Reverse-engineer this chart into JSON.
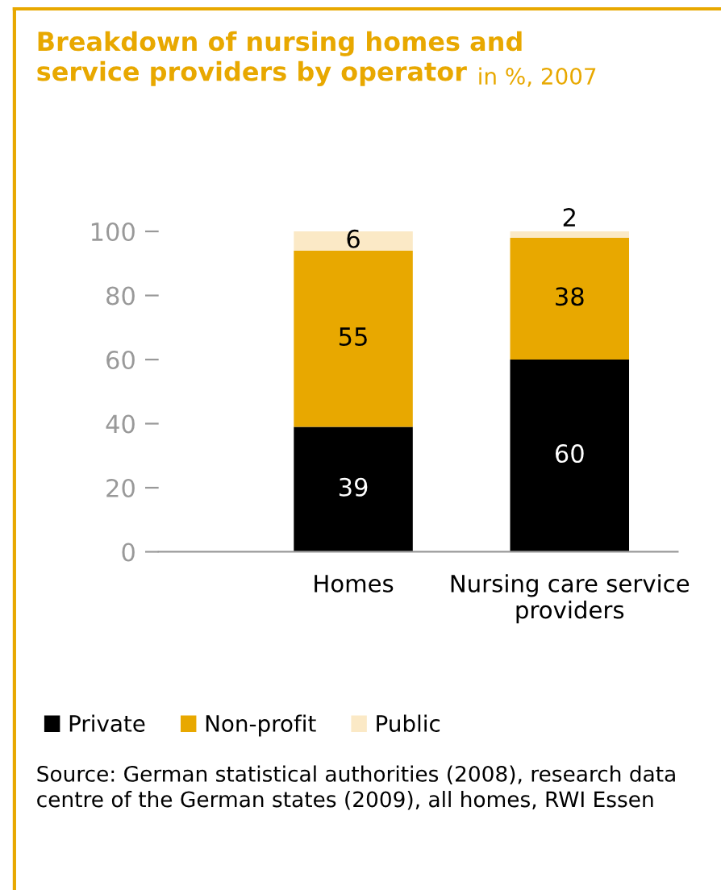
{
  "chart_data": {
    "type": "bar",
    "title": "Breakdown of nursing homes and service providers by operator",
    "subtitle": "in %, 2007",
    "categories": [
      "Homes",
      "Nursing care service providers"
    ],
    "stacked": true,
    "series": [
      {
        "name": "Private",
        "color": "#000000",
        "values": [
          39,
          60
        ]
      },
      {
        "name": "Non-profit",
        "color": "#e8a800",
        "values": [
          55,
          38
        ]
      },
      {
        "name": "Public",
        "color": "#fbe9c6",
        "values": [
          6,
          2
        ]
      }
    ],
    "ylim": [
      0,
      100
    ],
    "yticks": [
      0,
      20,
      40,
      60,
      80,
      100
    ],
    "data_labels": true,
    "grid": false,
    "legend": "bottom",
    "annotations": [
      "Source: German statistical authorities (2008), research data centre of the German states (2009), all homes, RWI Essen"
    ]
  }
}
